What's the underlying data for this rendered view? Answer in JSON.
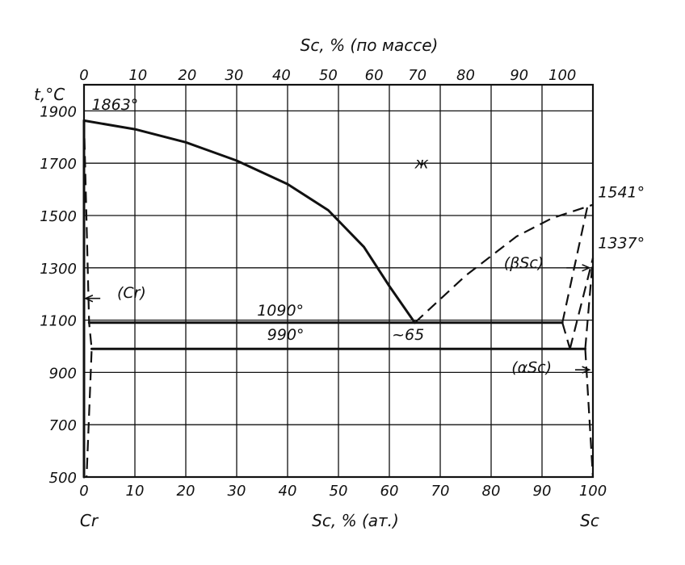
{
  "chart_data": {
    "type": "line",
    "title": "",
    "y_axis_label": "t,°C",
    "top_axis_label": "Sc, % (по массе)",
    "bottom_axis_label": "Sc, % (ат.)",
    "left_component": "Cr",
    "right_component": "Sc",
    "xlim": [
      0,
      100
    ],
    "ylim": [
      500,
      2000
    ],
    "grid": true,
    "x_ticks_at": [
      0,
      10,
      20,
      30,
      40,
      50,
      60,
      70,
      80,
      90,
      100
    ],
    "top_ticks_at": [
      0,
      10.6,
      20.3,
      29.5,
      38.8,
      48.0,
      57.0,
      65.5,
      75.0,
      85.5,
      94.0,
      100
    ],
    "y_ticks": [
      500,
      700,
      900,
      1100,
      1300,
      1500,
      1700,
      1900
    ],
    "top_tick_labels": [
      "0",
      "10",
      "20",
      "30",
      "40",
      "50",
      "60",
      "70",
      "80",
      "90",
      "100"
    ],
    "bottom_tick_labels": [
      "0",
      "10",
      "20",
      "30",
      "40",
      "50",
      "60",
      "70",
      "80",
      "90",
      "100"
    ],
    "y_tick_labels": [
      "500",
      "700",
      "900",
      "1100",
      "1300",
      "1500",
      "1700",
      "1900"
    ],
    "series": [
      {
        "style": "solid",
        "points": [
          [
            0,
            1863
          ],
          [
            10,
            1830
          ],
          [
            20,
            1780
          ],
          [
            30,
            1710
          ],
          [
            40,
            1620
          ],
          [
            48,
            1520
          ],
          [
            55,
            1380
          ],
          [
            60,
            1230
          ],
          [
            65,
            1090
          ]
        ]
      },
      {
        "style": "dashed",
        "points": [
          [
            65,
            1090
          ],
          [
            75,
            1270
          ],
          [
            85,
            1420
          ],
          [
            92,
            1490
          ],
          [
            100,
            1541
          ]
        ]
      },
      {
        "style": "solid",
        "points": [
          [
            1,
            1090
          ],
          [
            94,
            1090
          ]
        ]
      },
      {
        "style": "solid",
        "points": [
          [
            1.5,
            990
          ],
          [
            98.5,
            990
          ]
        ]
      },
      {
        "style": "dashed",
        "points": [
          [
            94,
            1090
          ],
          [
            99,
            1541
          ]
        ]
      },
      {
        "style": "dashed",
        "points": [
          [
            94,
            1090
          ],
          [
            95.5,
            990
          ]
        ]
      },
      {
        "style": "dashed",
        "points": [
          [
            95.5,
            990
          ],
          [
            100,
            1337
          ]
        ]
      },
      {
        "style": "dashed",
        "points": [
          [
            98.5,
            990
          ],
          [
            100,
            1337
          ]
        ]
      },
      {
        "style": "dashed",
        "points": [
          [
            98.5,
            990
          ],
          [
            100,
            500
          ]
        ]
      },
      {
        "style": "solid",
        "points": [
          [
            0,
            500
          ],
          [
            0,
            1863
          ]
        ]
      },
      {
        "style": "dashed",
        "points": [
          [
            0,
            1863
          ],
          [
            1,
            1090
          ],
          [
            1.5,
            990
          ],
          [
            0.5,
            500
          ]
        ]
      }
    ],
    "annotations": [
      {
        "text": "1863°",
        "x": 1.5,
        "y": 1905
      },
      {
        "text": "ж",
        "x": 65,
        "y": 1680
      },
      {
        "text": "1541°",
        "x": 101,
        "y": 1570
      },
      {
        "text": "1337°",
        "x": 101,
        "y": 1375
      },
      {
        "text": "(βSc)",
        "x": 82.5,
        "y": 1300
      },
      {
        "text": "(Cr)",
        "x": 6.5,
        "y": 1185
      },
      {
        "text": "1090°",
        "x": 34,
        "y": 1118
      },
      {
        "text": "990°",
        "x": 36,
        "y": 1025
      },
      {
        "text": "~65",
        "x": 60.5,
        "y": 1025
      },
      {
        "text": "(αSc)",
        "x": 84,
        "y": 900
      }
    ],
    "arrows": [
      {
        "from": [
          3.2,
          1183
        ],
        "to": [
          0.3,
          1183
        ]
      },
      {
        "from": [
          94.8,
          1300
        ],
        "to": [
          99.3,
          1300
        ]
      },
      {
        "from": [
          96.5,
          910
        ],
        "to": [
          99.3,
          910
        ]
      }
    ]
  }
}
